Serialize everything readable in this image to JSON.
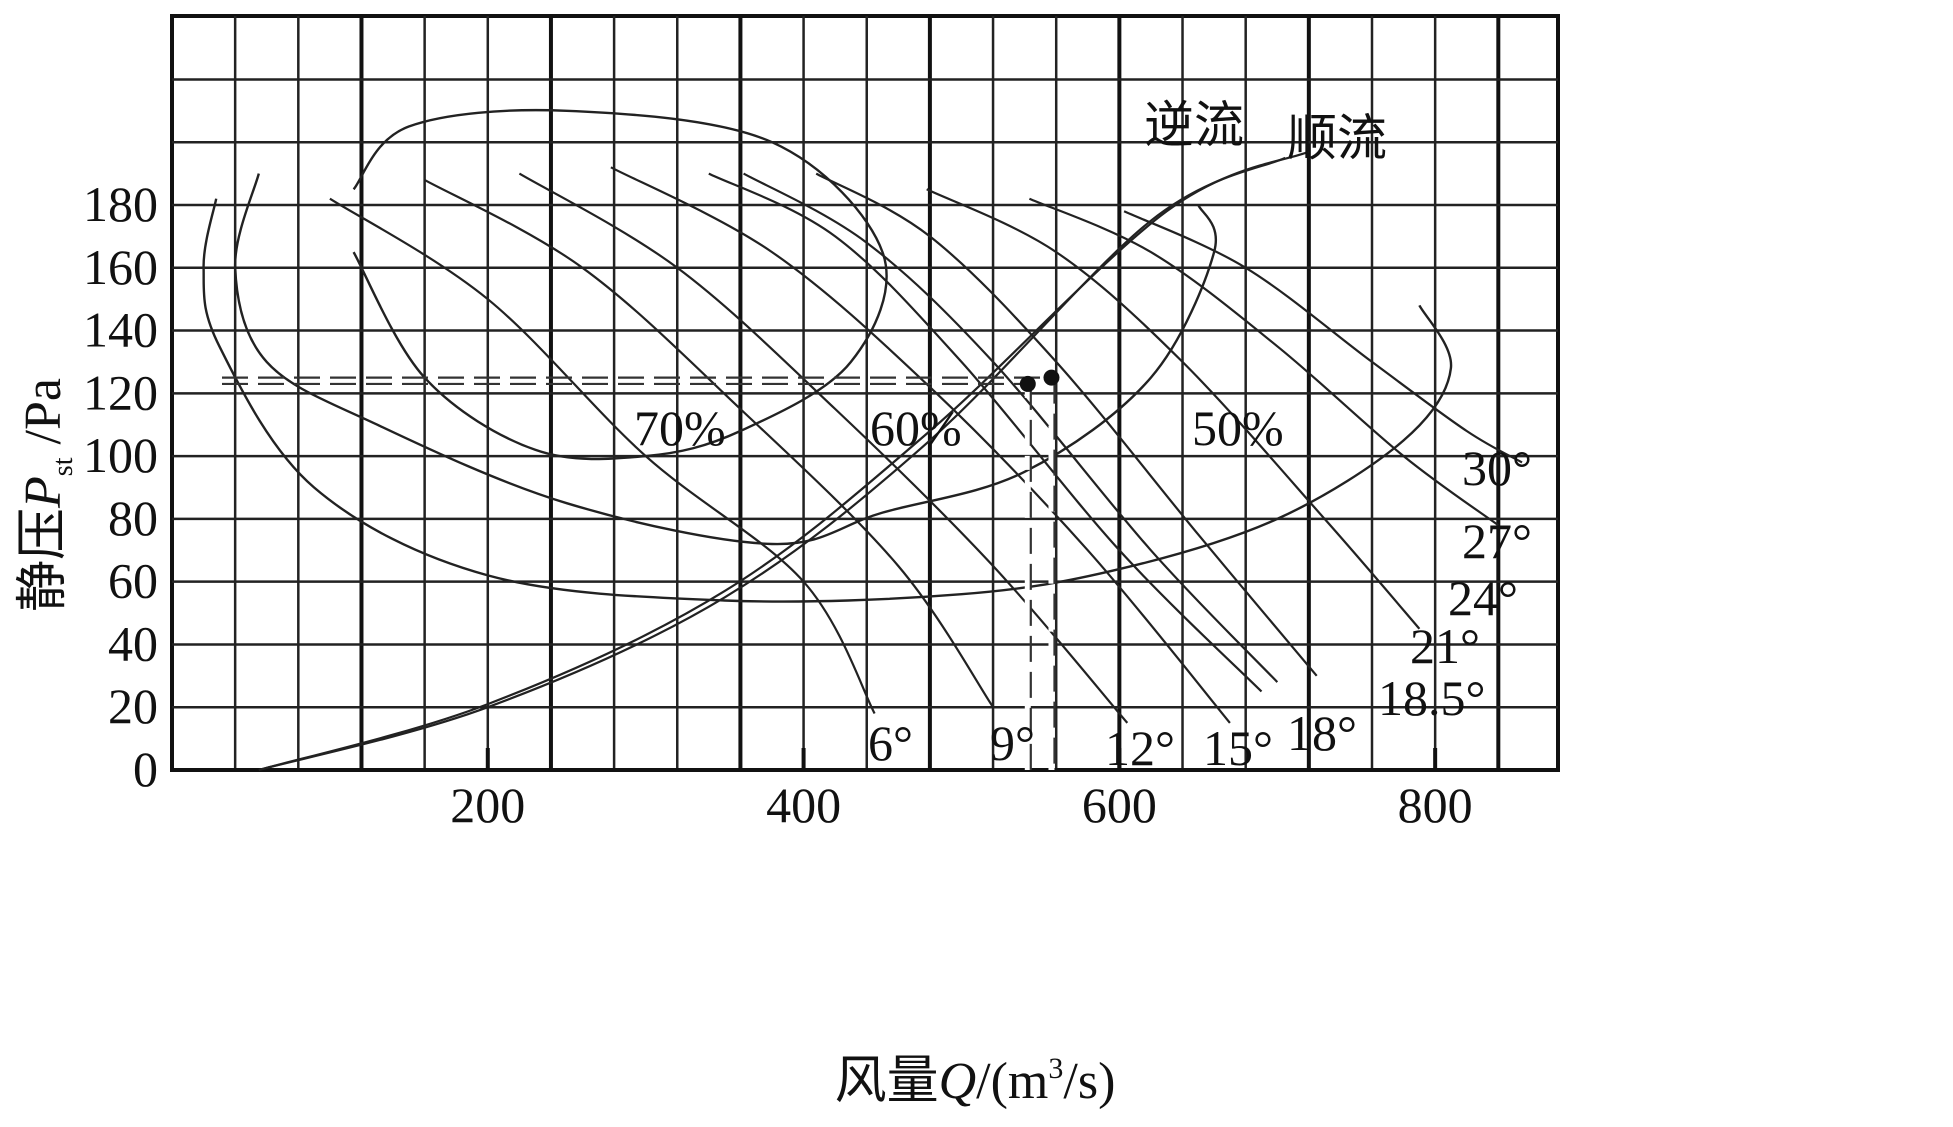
{
  "chart_data": {
    "type": "line",
    "xlabel_cn": "风量",
    "xlabel_var": "Q",
    "xlabel_unit_pre": "/(m",
    "xlabel_unit_sup": "3",
    "xlabel_unit_post": "/s)",
    "ylabel_cn": "静压",
    "ylabel_var": "P",
    "ylabel_sub": "st",
    "ylabel_unit": " /Pa",
    "xlim": [
      0,
      880
    ],
    "ylim": [
      0,
      238
    ],
    "x_ticks": [
      {
        "value": 200,
        "label": "200"
      },
      {
        "value": 400,
        "label": "400"
      },
      {
        "value": 600,
        "label": "600"
      },
      {
        "value": 800,
        "label": "800"
      }
    ],
    "y_ticks": [
      {
        "value": 0,
        "label": "0"
      },
      {
        "value": 20,
        "label": "20"
      },
      {
        "value": 40,
        "label": "40"
      },
      {
        "value": 60,
        "label": "60"
      },
      {
        "value": 80,
        "label": "80"
      },
      {
        "value": 100,
        "label": "100"
      },
      {
        "value": 120,
        "label": "120"
      },
      {
        "value": 140,
        "label": "140"
      },
      {
        "value": 160,
        "label": "160"
      },
      {
        "value": 180,
        "label": "180"
      }
    ],
    "grid": true,
    "blade_angle_curves": [
      {
        "label": "6°",
        "points": [
          [
            100,
            182
          ],
          [
            200,
            150
          ],
          [
            300,
            100
          ],
          [
            400,
            60
          ],
          [
            445,
            18
          ]
        ]
      },
      {
        "label": "9°",
        "points": [
          [
            160,
            188
          ],
          [
            260,
            160
          ],
          [
            360,
            115
          ],
          [
            460,
            65
          ],
          [
            520,
            20
          ]
        ]
      },
      {
        "label": "12°",
        "points": [
          [
            220,
            190
          ],
          [
            320,
            160
          ],
          [
            420,
            115
          ],
          [
            520,
            65
          ],
          [
            605,
            15
          ]
        ]
      },
      {
        "label": "15°",
        "points": [
          [
            278,
            192
          ],
          [
            380,
            165
          ],
          [
            480,
            122
          ],
          [
            580,
            70
          ],
          [
            670,
            15
          ]
        ]
      },
      {
        "label": "18°",
        "points": [
          [
            340,
            190
          ],
          [
            420,
            170
          ],
          [
            500,
            130
          ],
          [
            600,
            70
          ],
          [
            690,
            25
          ]
        ]
      },
      {
        "label": "18.5°",
        "points": [
          [
            362,
            190
          ],
          [
            440,
            168
          ],
          [
            520,
            130
          ],
          [
            620,
            70
          ],
          [
            700,
            28
          ]
        ]
      },
      {
        "label": "21°",
        "points": [
          [
            408,
            190
          ],
          [
            480,
            170
          ],
          [
            560,
            130
          ],
          [
            650,
            75
          ],
          [
            725,
            30
          ]
        ]
      },
      {
        "label": "24°",
        "points": [
          [
            478,
            185
          ],
          [
            560,
            165
          ],
          [
            640,
            130
          ],
          [
            730,
            80
          ],
          [
            790,
            45
          ]
        ]
      },
      {
        "label": "27°",
        "points": [
          [
            543,
            182
          ],
          [
            620,
            165
          ],
          [
            700,
            135
          ],
          [
            780,
            100
          ],
          [
            840,
            78
          ]
        ]
      },
      {
        "label": "30°",
        "points": [
          [
            603,
            178
          ],
          [
            680,
            160
          ],
          [
            760,
            130
          ],
          [
            820,
            108
          ],
          [
            855,
            98
          ]
        ]
      }
    ],
    "efficiency_contours": [
      {
        "label": "70%",
        "points": [
          [
            115,
            185
          ],
          [
            150,
            205
          ],
          [
            250,
            210
          ],
          [
            380,
            200
          ],
          [
            450,
            165
          ],
          [
            430,
            130
          ],
          [
            360,
            108
          ],
          [
            300,
            100
          ],
          [
            230,
            102
          ],
          [
            160,
            125
          ],
          [
            115,
            165
          ]
        ]
      },
      {
        "label": "60%",
        "points": [
          [
            55,
            190
          ],
          [
            40,
            160
          ],
          [
            60,
            130
          ],
          [
            130,
            110
          ],
          [
            250,
            85
          ],
          [
            380,
            72
          ],
          [
            450,
            82
          ],
          [
            540,
            95
          ],
          [
            620,
            125
          ],
          [
            660,
            165
          ],
          [
            650,
            180
          ]
        ]
      },
      {
        "label": "50%",
        "points": [
          [
            28,
            182
          ],
          [
            20,
            160
          ],
          [
            30,
            135
          ],
          [
            90,
            90
          ],
          [
            200,
            62
          ],
          [
            350,
            54
          ],
          [
            500,
            56
          ],
          [
            600,
            64
          ],
          [
            700,
            80
          ],
          [
            780,
            105
          ],
          [
            810,
            128
          ],
          [
            790,
            148
          ]
        ]
      }
    ],
    "system_curves": [
      {
        "name": "逆流",
        "points": [
          [
            55,
            0
          ],
          [
            200,
            20
          ],
          [
            350,
            55
          ],
          [
            480,
            105
          ],
          [
            620,
            175
          ],
          [
            705,
            195
          ]
        ]
      },
      {
        "name": "顺流",
        "points": [
          [
            55,
            0
          ],
          [
            200,
            21
          ],
          [
            350,
            57
          ],
          [
            480,
            108
          ],
          [
            630,
            178
          ],
          [
            720,
            197
          ]
        ]
      }
    ],
    "operating_points": [
      {
        "x": 542,
        "y": 123
      },
      {
        "x": 557,
        "y": 125
      }
    ],
    "annotations": {
      "eff_70": "70%",
      "eff_60": "60%",
      "eff_50": "50%",
      "reverse_flow": "逆流",
      "forward_flow": "顺流"
    }
  }
}
